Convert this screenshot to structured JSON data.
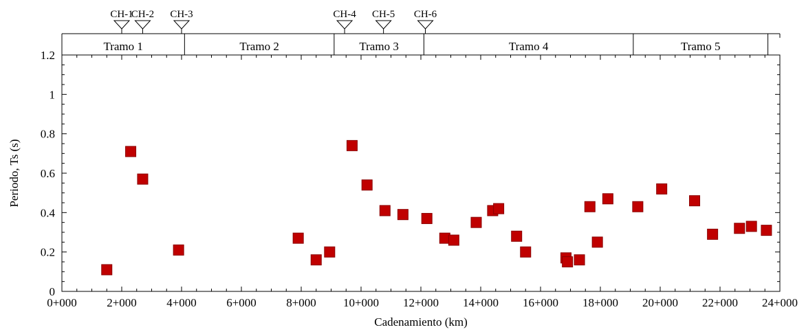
{
  "chart_data": {
    "type": "scatter",
    "xlabel": "Cadenamiento (km)",
    "ylabel": "Periodo, Ts (s)",
    "xlim": [
      0,
      24000
    ],
    "ylim": [
      0,
      1.2
    ],
    "x_ticks": [
      {
        "value": 0,
        "label": "0+000"
      },
      {
        "value": 2000,
        "label": "2+000"
      },
      {
        "value": 4000,
        "label": "4+000"
      },
      {
        "value": 6000,
        "label": "6+000"
      },
      {
        "value": 8000,
        "label": "8+000"
      },
      {
        "value": 10000,
        "label": "10+000"
      },
      {
        "value": 12000,
        "label": "12+000"
      },
      {
        "value": 14000,
        "label": "14+000"
      },
      {
        "value": 16000,
        "label": "16+000"
      },
      {
        "value": 18000,
        "label": "18+000"
      },
      {
        "value": 20000,
        "label": "20+000"
      },
      {
        "value": 22000,
        "label": "22+000"
      },
      {
        "value": 24000,
        "label": "24+000"
      }
    ],
    "y_ticks": [
      {
        "value": 0,
        "label": "0"
      },
      {
        "value": 0.2,
        "label": "0.2"
      },
      {
        "value": 0.4,
        "label": "0.4"
      },
      {
        "value": 0.6,
        "label": "0.6"
      },
      {
        "value": 0.8,
        "label": "0.8"
      },
      {
        "value": 1.0,
        "label": "1"
      },
      {
        "value": 1.2,
        "label": "1.2"
      }
    ],
    "marker_color": "#c00000",
    "points": [
      {
        "x": 1500,
        "y": 0.11
      },
      {
        "x": 2300,
        "y": 0.71
      },
      {
        "x": 2700,
        "y": 0.57
      },
      {
        "x": 3900,
        "y": 0.21
      },
      {
        "x": 7900,
        "y": 0.27
      },
      {
        "x": 8500,
        "y": 0.16
      },
      {
        "x": 8950,
        "y": 0.2
      },
      {
        "x": 9700,
        "y": 0.74
      },
      {
        "x": 10200,
        "y": 0.54
      },
      {
        "x": 10800,
        "y": 0.41
      },
      {
        "x": 11400,
        "y": 0.39
      },
      {
        "x": 12200,
        "y": 0.37
      },
      {
        "x": 12800,
        "y": 0.27
      },
      {
        "x": 13100,
        "y": 0.26
      },
      {
        "x": 13850,
        "y": 0.35
      },
      {
        "x": 14400,
        "y": 0.41
      },
      {
        "x": 14600,
        "y": 0.42
      },
      {
        "x": 15200,
        "y": 0.28
      },
      {
        "x": 15500,
        "y": 0.2
      },
      {
        "x": 16850,
        "y": 0.17
      },
      {
        "x": 16900,
        "y": 0.15
      },
      {
        "x": 17300,
        "y": 0.16
      },
      {
        "x": 17650,
        "y": 0.43
      },
      {
        "x": 17900,
        "y": 0.25
      },
      {
        "x": 18250,
        "y": 0.47
      },
      {
        "x": 19250,
        "y": 0.43
      },
      {
        "x": 20050,
        "y": 0.52
      },
      {
        "x": 21150,
        "y": 0.46
      },
      {
        "x": 21750,
        "y": 0.29
      },
      {
        "x": 22650,
        "y": 0.32
      },
      {
        "x": 23050,
        "y": 0.33
      },
      {
        "x": 23550,
        "y": 0.31
      }
    ],
    "tramos": [
      {
        "label": "Tramo 1",
        "start": 0,
        "end": 4100
      },
      {
        "label": "Tramo 2",
        "start": 4100,
        "end": 9100
      },
      {
        "label": "Tramo 3",
        "start": 9100,
        "end": 12100
      },
      {
        "label": "Tramo 4",
        "start": 12100,
        "end": 19100
      },
      {
        "label": "Tramo 5",
        "start": 19100,
        "end": 23600
      }
    ],
    "ch_markers": [
      {
        "label": "CH-1",
        "x": 2000
      },
      {
        "label": "CH-2",
        "x": 2700
      },
      {
        "label": "CH-3",
        "x": 4000
      },
      {
        "label": "CH-4",
        "x": 9450
      },
      {
        "label": "CH-5",
        "x": 10750
      },
      {
        "label": "CH-6",
        "x": 12150
      }
    ]
  }
}
